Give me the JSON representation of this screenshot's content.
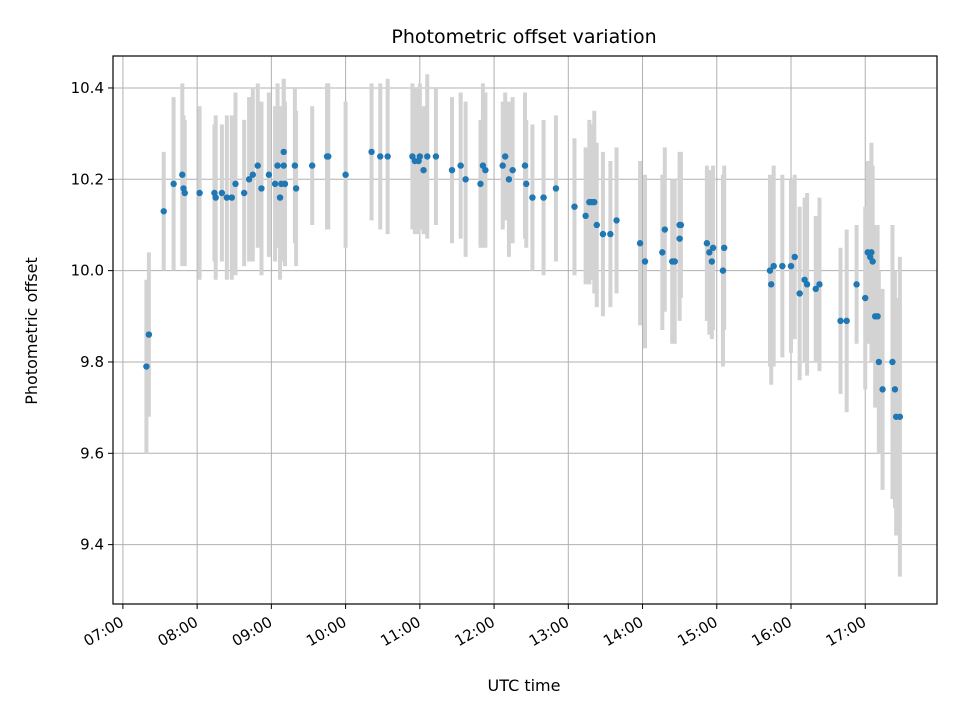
{
  "chart_data": {
    "type": "scatter",
    "title": "Photometric offset variation",
    "xlabel": "UTC time",
    "ylabel": "Photometric offset",
    "x_ticks": [
      "07:00",
      "08:00",
      "09:00",
      "10:00",
      "11:00",
      "12:00",
      "13:00",
      "14:00",
      "15:00",
      "16:00",
      "17:00"
    ],
    "y_ticks": [
      "9.4",
      "9.6",
      "9.8",
      "10.0",
      "10.2",
      "10.4"
    ],
    "xlim": [
      "06:52",
      "17:58"
    ],
    "ylim": [
      9.27,
      10.47
    ],
    "grid": true,
    "colors": {
      "point": "#1f77b4",
      "errorbar": "#d3d3d3",
      "grid": "#b0b0b0"
    },
    "x": [
      "07:19",
      "07:21",
      "07:33",
      "07:41",
      "07:48",
      "07:49",
      "07:50",
      "08:02",
      "08:14",
      "08:15",
      "08:20",
      "08:24",
      "08:28",
      "08:31",
      "08:38",
      "08:42",
      "08:45",
      "08:49",
      "08:52",
      "08:58",
      "09:03",
      "09:05",
      "09:07",
      "09:08",
      "09:10",
      "09:10",
      "09:11",
      "09:19",
      "09:20",
      "09:33",
      "09:45",
      "09:46",
      "10:00",
      "10:21",
      "10:28",
      "10:34",
      "10:54",
      "10:56",
      "10:59",
      "11:00",
      "11:03",
      "11:06",
      "11:13",
      "11:26",
      "11:33",
      "11:37",
      "11:49",
      "11:51",
      "11:53",
      "12:07",
      "12:09",
      "12:12",
      "12:15",
      "12:25",
      "12:26",
      "12:31",
      "12:40",
      "12:50",
      "13:05",
      "13:14",
      "13:17",
      "13:19",
      "13:21",
      "13:23",
      "13:28",
      "13:34",
      "13:39",
      "13:58",
      "14:02",
      "14:16",
      "14:18",
      "14:24",
      "14:26",
      "14:30",
      "14:30",
      "14:31",
      "14:52",
      "14:54",
      "14:56",
      "14:57",
      "15:05",
      "15:06",
      "15:43",
      "15:44",
      "15:46",
      "15:53",
      "16:00",
      "16:03",
      "16:07",
      "16:11",
      "16:13",
      "16:20",
      "16:23",
      "16:40",
      "16:45",
      "16:53",
      "17:00",
      "17:02",
      "17:04",
      "17:05",
      "17:06",
      "17:08",
      "17:10",
      "17:11",
      "17:14",
      "17:22",
      "17:24",
      "17:25",
      "17:28"
    ],
    "values": [
      9.79,
      9.86,
      10.13,
      10.19,
      10.21,
      10.18,
      10.17,
      10.17,
      10.17,
      10.16,
      10.17,
      10.16,
      10.16,
      10.19,
      10.17,
      10.2,
      10.21,
      10.23,
      10.18,
      10.21,
      10.19,
      10.23,
      10.16,
      10.19,
      10.23,
      10.26,
      10.19,
      10.23,
      10.18,
      10.23,
      10.25,
      10.25,
      10.21,
      10.26,
      10.25,
      10.25,
      10.25,
      10.24,
      10.24,
      10.25,
      10.22,
      10.25,
      10.25,
      10.22,
      10.23,
      10.2,
      10.19,
      10.23,
      10.22,
      10.23,
      10.25,
      10.2,
      10.22,
      10.23,
      10.19,
      10.16,
      10.16,
      10.18,
      10.14,
      10.12,
      10.15,
      10.15,
      10.15,
      10.1,
      10.08,
      10.08,
      10.11,
      10.06,
      10.02,
      10.04,
      10.09,
      10.02,
      10.02,
      10.07,
      10.1,
      10.1,
      10.06,
      10.04,
      10.02,
      10.05,
      10.0,
      10.05,
      10.0,
      9.97,
      10.01,
      10.01,
      10.01,
      10.03,
      9.95,
      9.98,
      9.97,
      9.96,
      9.97,
      9.89,
      9.89,
      9.97,
      9.94,
      10.04,
      10.03,
      10.04,
      10.02,
      9.9,
      9.9,
      9.8,
      9.74,
      9.8,
      9.74,
      9.68,
      9.68
    ],
    "errors": [
      0.19,
      0.18,
      0.13,
      0.19,
      0.2,
      0.16,
      0.16,
      0.19,
      0.15,
      0.18,
      0.15,
      0.18,
      0.18,
      0.2,
      0.16,
      0.18,
      0.19,
      0.18,
      0.19,
      0.18,
      0.17,
      0.18,
      0.18,
      0.17,
      0.19,
      0.16,
      0.18,
      0.17,
      0.17,
      0.13,
      0.16,
      0.16,
      0.16,
      0.15,
      0.16,
      0.17,
      0.16,
      0.16,
      0.16,
      0.16,
      0.14,
      0.18,
      0.15,
      0.16,
      0.16,
      0.17,
      0.14,
      0.18,
      0.17,
      0.14,
      0.14,
      0.17,
      0.16,
      0.16,
      0.14,
      0.16,
      0.17,
      0.16,
      0.15,
      0.15,
      0.18,
      0.17,
      0.2,
      0.18,
      0.18,
      0.16,
      0.16,
      0.18,
      0.19,
      0.17,
      0.18,
      0.18,
      0.18,
      0.18,
      0.16,
      0.16,
      0.17,
      0.18,
      0.17,
      0.18,
      0.21,
      0.18,
      0.21,
      0.22,
      0.22,
      0.2,
      0.19,
      0.18,
      0.19,
      0.18,
      0.2,
      0.16,
      0.19,
      0.16,
      0.2,
      0.13,
      0.2,
      0.2,
      0.19,
      0.24,
      0.21,
      0.2,
      0.2,
      0.2,
      0.22,
      0.3,
      0.26,
      0.26,
      0.35
    ]
  }
}
